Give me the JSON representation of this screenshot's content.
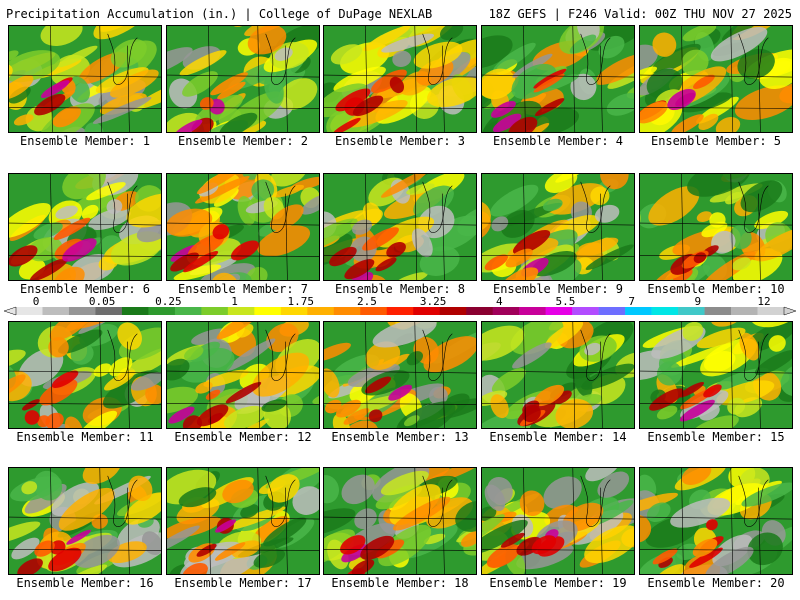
{
  "header": {
    "title": "Precipitation Accumulation (in.) | College of DuPage NEXLAB",
    "valid": "18Z GEFS | F246 Valid: 00Z THU NOV 27 2025"
  },
  "panels": [
    {
      "label": "Ensemble Member: 1"
    },
    {
      "label": "Ensemble Member: 2"
    },
    {
      "label": "Ensemble Member: 3"
    },
    {
      "label": "Ensemble Member: 4"
    },
    {
      "label": "Ensemble Member: 5"
    },
    {
      "label": "Ensemble Member: 6"
    },
    {
      "label": "Ensemble Member: 7"
    },
    {
      "label": "Ensemble Member: 8"
    },
    {
      "label": "Ensemble Member: 9"
    },
    {
      "label": "Ensemble Member: 10"
    },
    {
      "label": "Ensemble Member: 11"
    },
    {
      "label": "Ensemble Member: 12"
    },
    {
      "label": "Ensemble Member: 13"
    },
    {
      "label": "Ensemble Member: 14"
    },
    {
      "label": "Ensemble Member: 15"
    },
    {
      "label": "Ensemble Member: 16"
    },
    {
      "label": "Ensemble Member: 17"
    },
    {
      "label": "Ensemble Member: 18"
    },
    {
      "label": "Ensemble Member: 19"
    },
    {
      "label": "Ensemble Member: 20"
    }
  ],
  "colorbar": {
    "ticks": [
      "0",
      "0.05",
      "0.25",
      "1",
      "1.75",
      "2.5",
      "3.25",
      "4",
      "5.5",
      "7",
      "9",
      "12"
    ],
    "colors": [
      "#e6e6e6",
      "#bdbdbd",
      "#969696",
      "#6e6e6e",
      "#1a7a1a",
      "#2e9a2e",
      "#49b649",
      "#7ccc2a",
      "#c8e61e",
      "#ffff00",
      "#ffd700",
      "#ffb000",
      "#ff8c00",
      "#ff5a00",
      "#ff2000",
      "#e00000",
      "#b00000",
      "#8a0030",
      "#a0005a",
      "#c8009a",
      "#e600e6",
      "#b24cff",
      "#6e6eff",
      "#00c8ff",
      "#00e6e6",
      "#40c8c8",
      "#8c8c8c",
      "#b4b4b4",
      "#d2d2d2"
    ]
  }
}
